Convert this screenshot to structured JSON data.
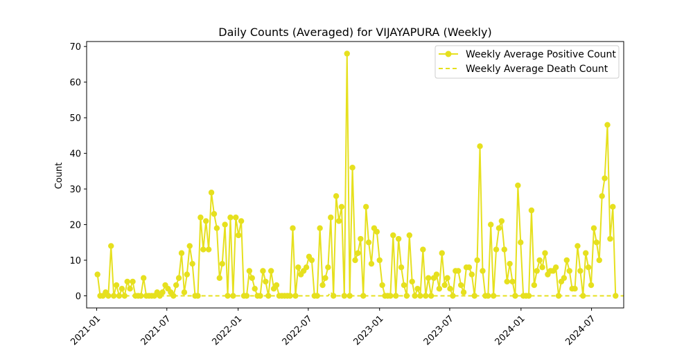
{
  "chart_data": {
    "type": "line",
    "title": "Daily Counts (Averaged) for VIJAYAPURA (Weekly)",
    "xlabel": "",
    "ylabel": "Count",
    "x_start": "2021-01-03",
    "x_step_days": 7,
    "xlim": [
      "2020-12-06",
      "2024-09-22"
    ],
    "ylim": [
      -3.4,
      71.4
    ],
    "x_ticks": [
      "2021-01",
      "2021-07",
      "2022-01",
      "2022-07",
      "2023-01",
      "2023-07",
      "2024-01",
      "2024-07"
    ],
    "y_ticks": [
      0,
      10,
      20,
      30,
      40,
      50,
      60,
      70
    ],
    "legend_position": "top-right",
    "grid": false,
    "series": [
      {
        "name": "Weekly Average Positive Count",
        "color": "#e6e01e",
        "style": "solid-marker",
        "values": [
          6,
          0,
          0,
          1,
          0,
          14,
          0,
          3,
          0,
          2,
          0,
          4,
          2,
          4,
          0,
          0,
          0,
          5,
          0,
          0,
          0,
          0,
          1,
          0,
          1,
          3,
          2,
          1,
          0,
          3,
          5,
          12,
          1,
          6,
          14,
          9,
          0,
          0,
          22,
          13,
          21,
          13,
          29,
          23,
          19,
          5,
          9,
          20,
          0,
          22,
          0,
          22,
          17,
          21,
          0,
          0,
          7,
          5,
          2,
          0,
          0,
          7,
          4,
          0,
          7,
          2,
          3,
          0,
          0,
          0,
          0,
          0,
          19,
          0,
          8,
          6,
          7,
          8,
          11,
          10,
          0,
          0,
          19,
          3,
          5,
          8,
          22,
          0,
          28,
          21,
          25,
          0,
          68,
          0,
          36,
          10,
          12,
          16,
          0,
          25,
          15,
          9,
          19,
          18,
          10,
          3,
          0,
          0,
          0,
          17,
          0,
          16,
          8,
          3,
          0,
          17,
          4,
          0,
          2,
          0,
          13,
          0,
          5,
          0,
          5,
          6,
          2,
          12,
          3,
          5,
          2,
          0,
          7,
          7,
          3,
          1,
          8,
          8,
          6,
          0,
          10,
          42,
          7,
          0,
          0,
          20,
          0,
          13,
          19,
          21,
          13,
          4,
          9,
          4,
          0,
          31,
          15,
          0,
          0,
          0,
          24,
          3,
          7,
          10,
          8,
          12,
          6,
          7,
          7,
          8,
          0,
          4,
          5,
          10,
          7,
          2,
          2,
          14,
          7,
          0,
          12,
          8,
          3,
          19,
          15,
          10,
          28,
          33,
          48,
          16,
          25,
          0
        ]
      },
      {
        "name": "Weekly Average Death Count",
        "color": "#e6e01e",
        "style": "dashed",
        "values": [
          0,
          0,
          0,
          0,
          0,
          0,
          0,
          0,
          0,
          0,
          0,
          0,
          0,
          0,
          0,
          0,
          0,
          0,
          0,
          0,
          0,
          0,
          0,
          0,
          0,
          0,
          0,
          0,
          0,
          0,
          0,
          0,
          0,
          0,
          0,
          0,
          0,
          0,
          0,
          0,
          0,
          0,
          0,
          0,
          0,
          0,
          0,
          0,
          0,
          0,
          0,
          0,
          0,
          0,
          0,
          0,
          0,
          0,
          0,
          0,
          0,
          0,
          0,
          0,
          0,
          0,
          0,
          0,
          0,
          0,
          0,
          0,
          0,
          0,
          0,
          0,
          0,
          0,
          0,
          0,
          0,
          0,
          0,
          0,
          0,
          0,
          1,
          0,
          0,
          0,
          0,
          0,
          0,
          0,
          0,
          0,
          0,
          0,
          0,
          0,
          0,
          0,
          0,
          0,
          0,
          0,
          0,
          0,
          0,
          0,
          0,
          0,
          0,
          0,
          0,
          0,
          0,
          0,
          0,
          0,
          0,
          0,
          0,
          0,
          0,
          0,
          0,
          0,
          0,
          0,
          0,
          0,
          0,
          0,
          0,
          0,
          0,
          0,
          0,
          0,
          0,
          0,
          0,
          0,
          0,
          0,
          0,
          0,
          0,
          0,
          0,
          0,
          0,
          0,
          0,
          0,
          0,
          0,
          0,
          0,
          0,
          0,
          0,
          0,
          0,
          0,
          0,
          0,
          0,
          0,
          0,
          0,
          0,
          0,
          0,
          0,
          0,
          0,
          0,
          0,
          0,
          0,
          0,
          0,
          0,
          0,
          0,
          0,
          0,
          0,
          0,
          0,
          0,
          0,
          0
        ]
      }
    ]
  }
}
